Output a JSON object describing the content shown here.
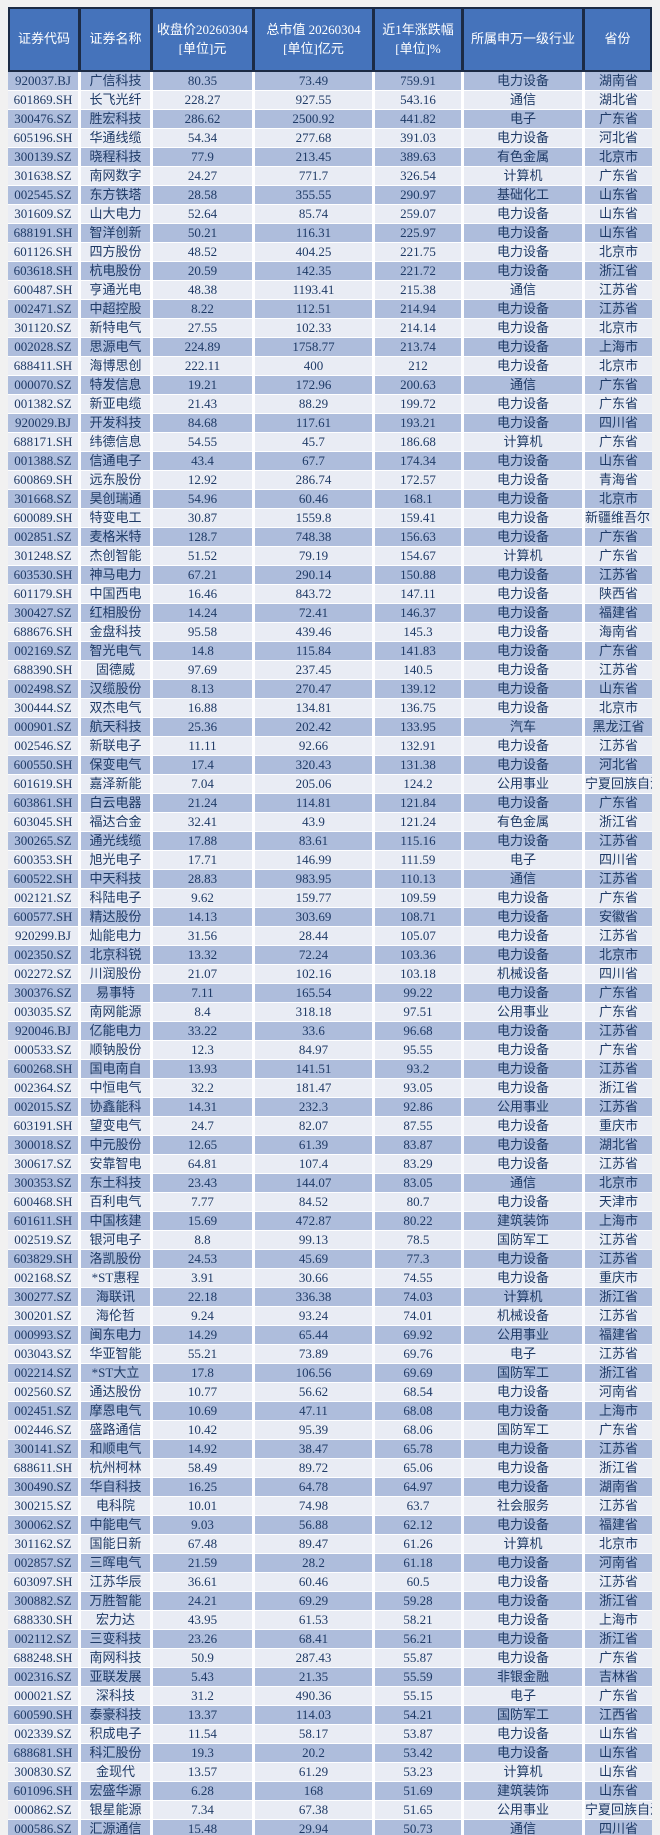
{
  "colors": {
    "page_bg": "#F1F1F1",
    "header_bg": "#4573BB",
    "header_text": "#FFFFFF",
    "header_border": "#1C2B45",
    "band_dark": "#AEBDDC",
    "band_light": "#E9ECF4",
    "cell_text": "#1E3A66",
    "grid_line": "#FFFFFF"
  },
  "table": {
    "column_keys": [
      "code",
      "name",
      "close",
      "market_cap",
      "change_1y",
      "industry",
      "province"
    ],
    "columns": [
      {
        "label": "证券代码"
      },
      {
        "label": "证券名称"
      },
      {
        "label": "收盘价20260304\n[单位]元"
      },
      {
        "label": "总市值 20260304\n[单位]亿元"
      },
      {
        "label": "近1年涨跌幅\n[单位]%"
      },
      {
        "label": "所属申万一级行业"
      },
      {
        "label": "省份"
      }
    ],
    "rows": [
      [
        "920037.BJ",
        "广信科技",
        "80.35",
        "73.49",
        "759.91",
        "电力设备",
        "湖南省"
      ],
      [
        "601869.SH",
        "长飞光纤",
        "228.27",
        "927.55",
        "543.16",
        "通信",
        "湖北省"
      ],
      [
        "300476.SZ",
        "胜宏科技",
        "286.62",
        "2500.92",
        "441.82",
        "电子",
        "广东省"
      ],
      [
        "605196.SH",
        "华通线缆",
        "54.34",
        "277.68",
        "391.03",
        "电力设备",
        "河北省"
      ],
      [
        "300139.SZ",
        "晓程科技",
        "77.9",
        "213.45",
        "389.63",
        "有色金属",
        "北京市"
      ],
      [
        "301638.SZ",
        "南网数字",
        "24.27",
        "771.7",
        "326.54",
        "计算机",
        "广东省"
      ],
      [
        "002545.SZ",
        "东方铁塔",
        "28.58",
        "355.55",
        "290.97",
        "基础化工",
        "山东省"
      ],
      [
        "301609.SZ",
        "山大电力",
        "52.64",
        "85.74",
        "259.07",
        "电力设备",
        "山东省"
      ],
      [
        "688191.SH",
        "智洋创新",
        "50.21",
        "116.31",
        "225.97",
        "电力设备",
        "山东省"
      ],
      [
        "601126.SH",
        "四方股份",
        "48.52",
        "404.25",
        "221.75",
        "电力设备",
        "北京市"
      ],
      [
        "603618.SH",
        "杭电股份",
        "20.59",
        "142.35",
        "221.72",
        "电力设备",
        "浙江省"
      ],
      [
        "600487.SH",
        "亨通光电",
        "48.38",
        "1193.41",
        "215.38",
        "通信",
        "江苏省"
      ],
      [
        "002471.SZ",
        "中超控股",
        "8.22",
        "112.51",
        "214.94",
        "电力设备",
        "江苏省"
      ],
      [
        "301120.SZ",
        "新特电气",
        "27.55",
        "102.33",
        "214.14",
        "电力设备",
        "北京市"
      ],
      [
        "002028.SZ",
        "思源电气",
        "224.89",
        "1758.77",
        "213.74",
        "电力设备",
        "上海市"
      ],
      [
        "688411.SH",
        "海博思创",
        "222.11",
        "400",
        "212",
        "电力设备",
        "北京市"
      ],
      [
        "000070.SZ",
        "特发信息",
        "19.21",
        "172.96",
        "200.63",
        "通信",
        "广东省"
      ],
      [
        "001382.SZ",
        "新亚电缆",
        "21.43",
        "88.29",
        "199.72",
        "电力设备",
        "广东省"
      ],
      [
        "920029.BJ",
        "开发科技",
        "84.68",
        "117.61",
        "193.21",
        "电力设备",
        "四川省"
      ],
      [
        "688171.SH",
        "纬德信息",
        "54.55",
        "45.7",
        "186.68",
        "计算机",
        "广东省"
      ],
      [
        "001388.SZ",
        "信通电子",
        "43.4",
        "67.7",
        "174.34",
        "电力设备",
        "山东省"
      ],
      [
        "600869.SH",
        "远东股份",
        "12.92",
        "286.74",
        "172.57",
        "电力设备",
        "青海省"
      ],
      [
        "301668.SZ",
        "昊创瑞通",
        "54.96",
        "60.46",
        "168.1",
        "电力设备",
        "北京市"
      ],
      [
        "600089.SH",
        "特变电工",
        "30.87",
        "1559.8",
        "159.41",
        "电力设备",
        "新疆维吾尔自治区"
      ],
      [
        "002851.SZ",
        "麦格米特",
        "128.7",
        "748.38",
        "156.63",
        "电力设备",
        "广东省"
      ],
      [
        "301248.SZ",
        "杰创智能",
        "51.52",
        "79.19",
        "154.67",
        "计算机",
        "广东省"
      ],
      [
        "603530.SH",
        "神马电力",
        "67.21",
        "290.14",
        "150.88",
        "电力设备",
        "江苏省"
      ],
      [
        "601179.SH",
        "中国西电",
        "16.46",
        "843.72",
        "147.11",
        "电力设备",
        "陕西省"
      ],
      [
        "300427.SZ",
        "红相股份",
        "14.24",
        "72.41",
        "146.37",
        "电力设备",
        "福建省"
      ],
      [
        "688676.SH",
        "金盘科技",
        "95.58",
        "439.46",
        "145.3",
        "电力设备",
        "海南省"
      ],
      [
        "002169.SZ",
        "智光电气",
        "14.8",
        "115.84",
        "141.83",
        "电力设备",
        "广东省"
      ],
      [
        "688390.SH",
        "固德威",
        "97.69",
        "237.45",
        "140.5",
        "电力设备",
        "江苏省"
      ],
      [
        "002498.SZ",
        "汉缆股份",
        "8.13",
        "270.47",
        "139.12",
        "电力设备",
        "山东省"
      ],
      [
        "300444.SZ",
        "双杰电气",
        "16.88",
        "134.81",
        "136.75",
        "电力设备",
        "北京市"
      ],
      [
        "000901.SZ",
        "航天科技",
        "25.36",
        "202.42",
        "133.95",
        "汽车",
        "黑龙江省"
      ],
      [
        "002546.SZ",
        "新联电子",
        "11.11",
        "92.66",
        "132.91",
        "电力设备",
        "江苏省"
      ],
      [
        "600550.SH",
        "保变电气",
        "17.4",
        "320.43",
        "131.38",
        "电力设备",
        "河北省"
      ],
      [
        "601619.SH",
        "嘉泽新能",
        "7.04",
        "205.06",
        "124.2",
        "公用事业",
        "宁夏回族自治区"
      ],
      [
        "603861.SH",
        "白云电器",
        "21.24",
        "114.81",
        "121.84",
        "电力设备",
        "广东省"
      ],
      [
        "603045.SH",
        "福达合金",
        "32.41",
        "43.9",
        "121.24",
        "有色金属",
        "浙江省"
      ],
      [
        "300265.SZ",
        "通光线缆",
        "17.88",
        "83.61",
        "115.16",
        "电力设备",
        "江苏省"
      ],
      [
        "600353.SH",
        "旭光电子",
        "17.71",
        "146.99",
        "111.59",
        "电子",
        "四川省"
      ],
      [
        "600522.SH",
        "中天科技",
        "28.83",
        "983.95",
        "110.13",
        "通信",
        "江苏省"
      ],
      [
        "002121.SZ",
        "科陆电子",
        "9.62",
        "159.77",
        "109.59",
        "电力设备",
        "广东省"
      ],
      [
        "600577.SH",
        "精达股份",
        "14.13",
        "303.69",
        "108.71",
        "电力设备",
        "安徽省"
      ],
      [
        "920299.BJ",
        "灿能电力",
        "31.56",
        "28.44",
        "105.07",
        "电力设备",
        "江苏省"
      ],
      [
        "002350.SZ",
        "北京科锐",
        "13.32",
        "72.24",
        "103.36",
        "电力设备",
        "北京市"
      ],
      [
        "002272.SZ",
        "川润股份",
        "21.07",
        "102.16",
        "103.18",
        "机械设备",
        "四川省"
      ],
      [
        "300376.SZ",
        "易事特",
        "7.11",
        "165.54",
        "99.22",
        "电力设备",
        "广东省"
      ],
      [
        "003035.SZ",
        "南网能源",
        "8.4",
        "318.18",
        "97.51",
        "公用事业",
        "广东省"
      ],
      [
        "920046.BJ",
        "亿能电力",
        "33.22",
        "33.6",
        "96.68",
        "电力设备",
        "江苏省"
      ],
      [
        "000533.SZ",
        "顺钠股份",
        "12.3",
        "84.97",
        "95.55",
        "电力设备",
        "广东省"
      ],
      [
        "600268.SH",
        "国电南自",
        "13.93",
        "141.51",
        "93.2",
        "电力设备",
        "江苏省"
      ],
      [
        "002364.SZ",
        "中恒电气",
        "32.2",
        "181.47",
        "93.05",
        "电力设备",
        "浙江省"
      ],
      [
        "002015.SZ",
        "协鑫能科",
        "14.31",
        "232.3",
        "92.86",
        "公用事业",
        "江苏省"
      ],
      [
        "603191.SH",
        "望变电气",
        "24.7",
        "82.07",
        "87.55",
        "电力设备",
        "重庆市"
      ],
      [
        "300018.SZ",
        "中元股份",
        "12.65",
        "61.39",
        "83.87",
        "电力设备",
        "湖北省"
      ],
      [
        "300617.SZ",
        "安靠智电",
        "64.81",
        "107.4",
        "83.29",
        "电力设备",
        "江苏省"
      ],
      [
        "300353.SZ",
        "东土科技",
        "23.43",
        "144.07",
        "83.05",
        "通信",
        "北京市"
      ],
      [
        "600468.SH",
        "百利电气",
        "7.77",
        "84.52",
        "80.7",
        "电力设备",
        "天津市"
      ],
      [
        "601611.SH",
        "中国核建",
        "15.69",
        "472.87",
        "80.22",
        "建筑装饰",
        "上海市"
      ],
      [
        "002519.SZ",
        "银河电子",
        "8.8",
        "99.13",
        "78.5",
        "国防军工",
        "江苏省"
      ],
      [
        "603829.SH",
        "洛凯股份",
        "24.53",
        "45.69",
        "77.3",
        "电力设备",
        "江苏省"
      ],
      [
        "002168.SZ",
        "*ST惠程",
        "3.91",
        "30.66",
        "74.55",
        "电力设备",
        "重庆市"
      ],
      [
        "300277.SZ",
        "海联讯",
        "22.18",
        "336.38",
        "74.03",
        "计算机",
        "浙江省"
      ],
      [
        "300201.SZ",
        "海伦哲",
        "9.24",
        "93.24",
        "74.01",
        "机械设备",
        "江苏省"
      ],
      [
        "000993.SZ",
        "闽东电力",
        "14.29",
        "65.44",
        "69.92",
        "公用事业",
        "福建省"
      ],
      [
        "003043.SZ",
        "华亚智能",
        "55.21",
        "73.89",
        "69.76",
        "电子",
        "江苏省"
      ],
      [
        "002214.SZ",
        "*ST大立",
        "17.8",
        "106.56",
        "69.69",
        "国防军工",
        "浙江省"
      ],
      [
        "002560.SZ",
        "通达股份",
        "10.77",
        "56.62",
        "68.54",
        "电力设备",
        "河南省"
      ],
      [
        "002451.SZ",
        "摩恩电气",
        "10.69",
        "47.11",
        "68.08",
        "电力设备",
        "上海市"
      ],
      [
        "002446.SZ",
        "盛路通信",
        "10.42",
        "95.39",
        "68.06",
        "国防军工",
        "广东省"
      ],
      [
        "300141.SZ",
        "和顺电气",
        "14.92",
        "38.47",
        "65.78",
        "电力设备",
        "江苏省"
      ],
      [
        "688611.SH",
        "杭州柯林",
        "58.49",
        "89.72",
        "65.06",
        "电力设备",
        "浙江省"
      ],
      [
        "300490.SZ",
        "华自科技",
        "16.25",
        "64.78",
        "64.97",
        "电力设备",
        "湖南省"
      ],
      [
        "300215.SZ",
        "电科院",
        "10.01",
        "74.98",
        "63.7",
        "社会服务",
        "江苏省"
      ],
      [
        "300062.SZ",
        "中能电气",
        "9.03",
        "56.88",
        "62.12",
        "电力设备",
        "福建省"
      ],
      [
        "301162.SZ",
        "国能日新",
        "67.48",
        "89.47",
        "61.26",
        "计算机",
        "北京市"
      ],
      [
        "002857.SZ",
        "三晖电气",
        "21.59",
        "28.2",
        "61.18",
        "电力设备",
        "河南省"
      ],
      [
        "603097.SH",
        "江苏华辰",
        "36.61",
        "60.46",
        "60.5",
        "电力设备",
        "江苏省"
      ],
      [
        "300882.SZ",
        "万胜智能",
        "24.21",
        "69.29",
        "59.28",
        "电力设备",
        "浙江省"
      ],
      [
        "688330.SH",
        "宏力达",
        "43.95",
        "61.53",
        "58.21",
        "电力设备",
        "上海市"
      ],
      [
        "002112.SZ",
        "三变科技",
        "23.26",
        "68.41",
        "56.21",
        "电力设备",
        "浙江省"
      ],
      [
        "688248.SH",
        "南网科技",
        "50.9",
        "287.43",
        "55.87",
        "电力设备",
        "广东省"
      ],
      [
        "002316.SZ",
        "亚联发展",
        "5.43",
        "21.35",
        "55.59",
        "非银金融",
        "吉林省"
      ],
      [
        "000021.SZ",
        "深科技",
        "31.2",
        "490.36",
        "55.15",
        "电子",
        "广东省"
      ],
      [
        "600590.SH",
        "泰豪科技",
        "13.37",
        "114.03",
        "54.21",
        "国防军工",
        "江西省"
      ],
      [
        "002339.SZ",
        "积成电子",
        "11.54",
        "58.17",
        "53.87",
        "电力设备",
        "山东省"
      ],
      [
        "688681.SH",
        "科汇股份",
        "19.3",
        "20.2",
        "53.42",
        "电力设备",
        "山东省"
      ],
      [
        "300830.SZ",
        "金现代",
        "13.57",
        "61.29",
        "53.23",
        "计算机",
        "山东省"
      ],
      [
        "601096.SH",
        "宏盛华源",
        "6.28",
        "168",
        "51.69",
        "建筑装饰",
        "山东省"
      ],
      [
        "000862.SZ",
        "银星能源",
        "7.34",
        "67.38",
        "51.65",
        "公用事业",
        "宁夏回族自治区"
      ],
      [
        "000586.SZ",
        "汇源通信",
        "15.48",
        "29.94",
        "50.73",
        "通信",
        "四川省"
      ]
    ]
  }
}
